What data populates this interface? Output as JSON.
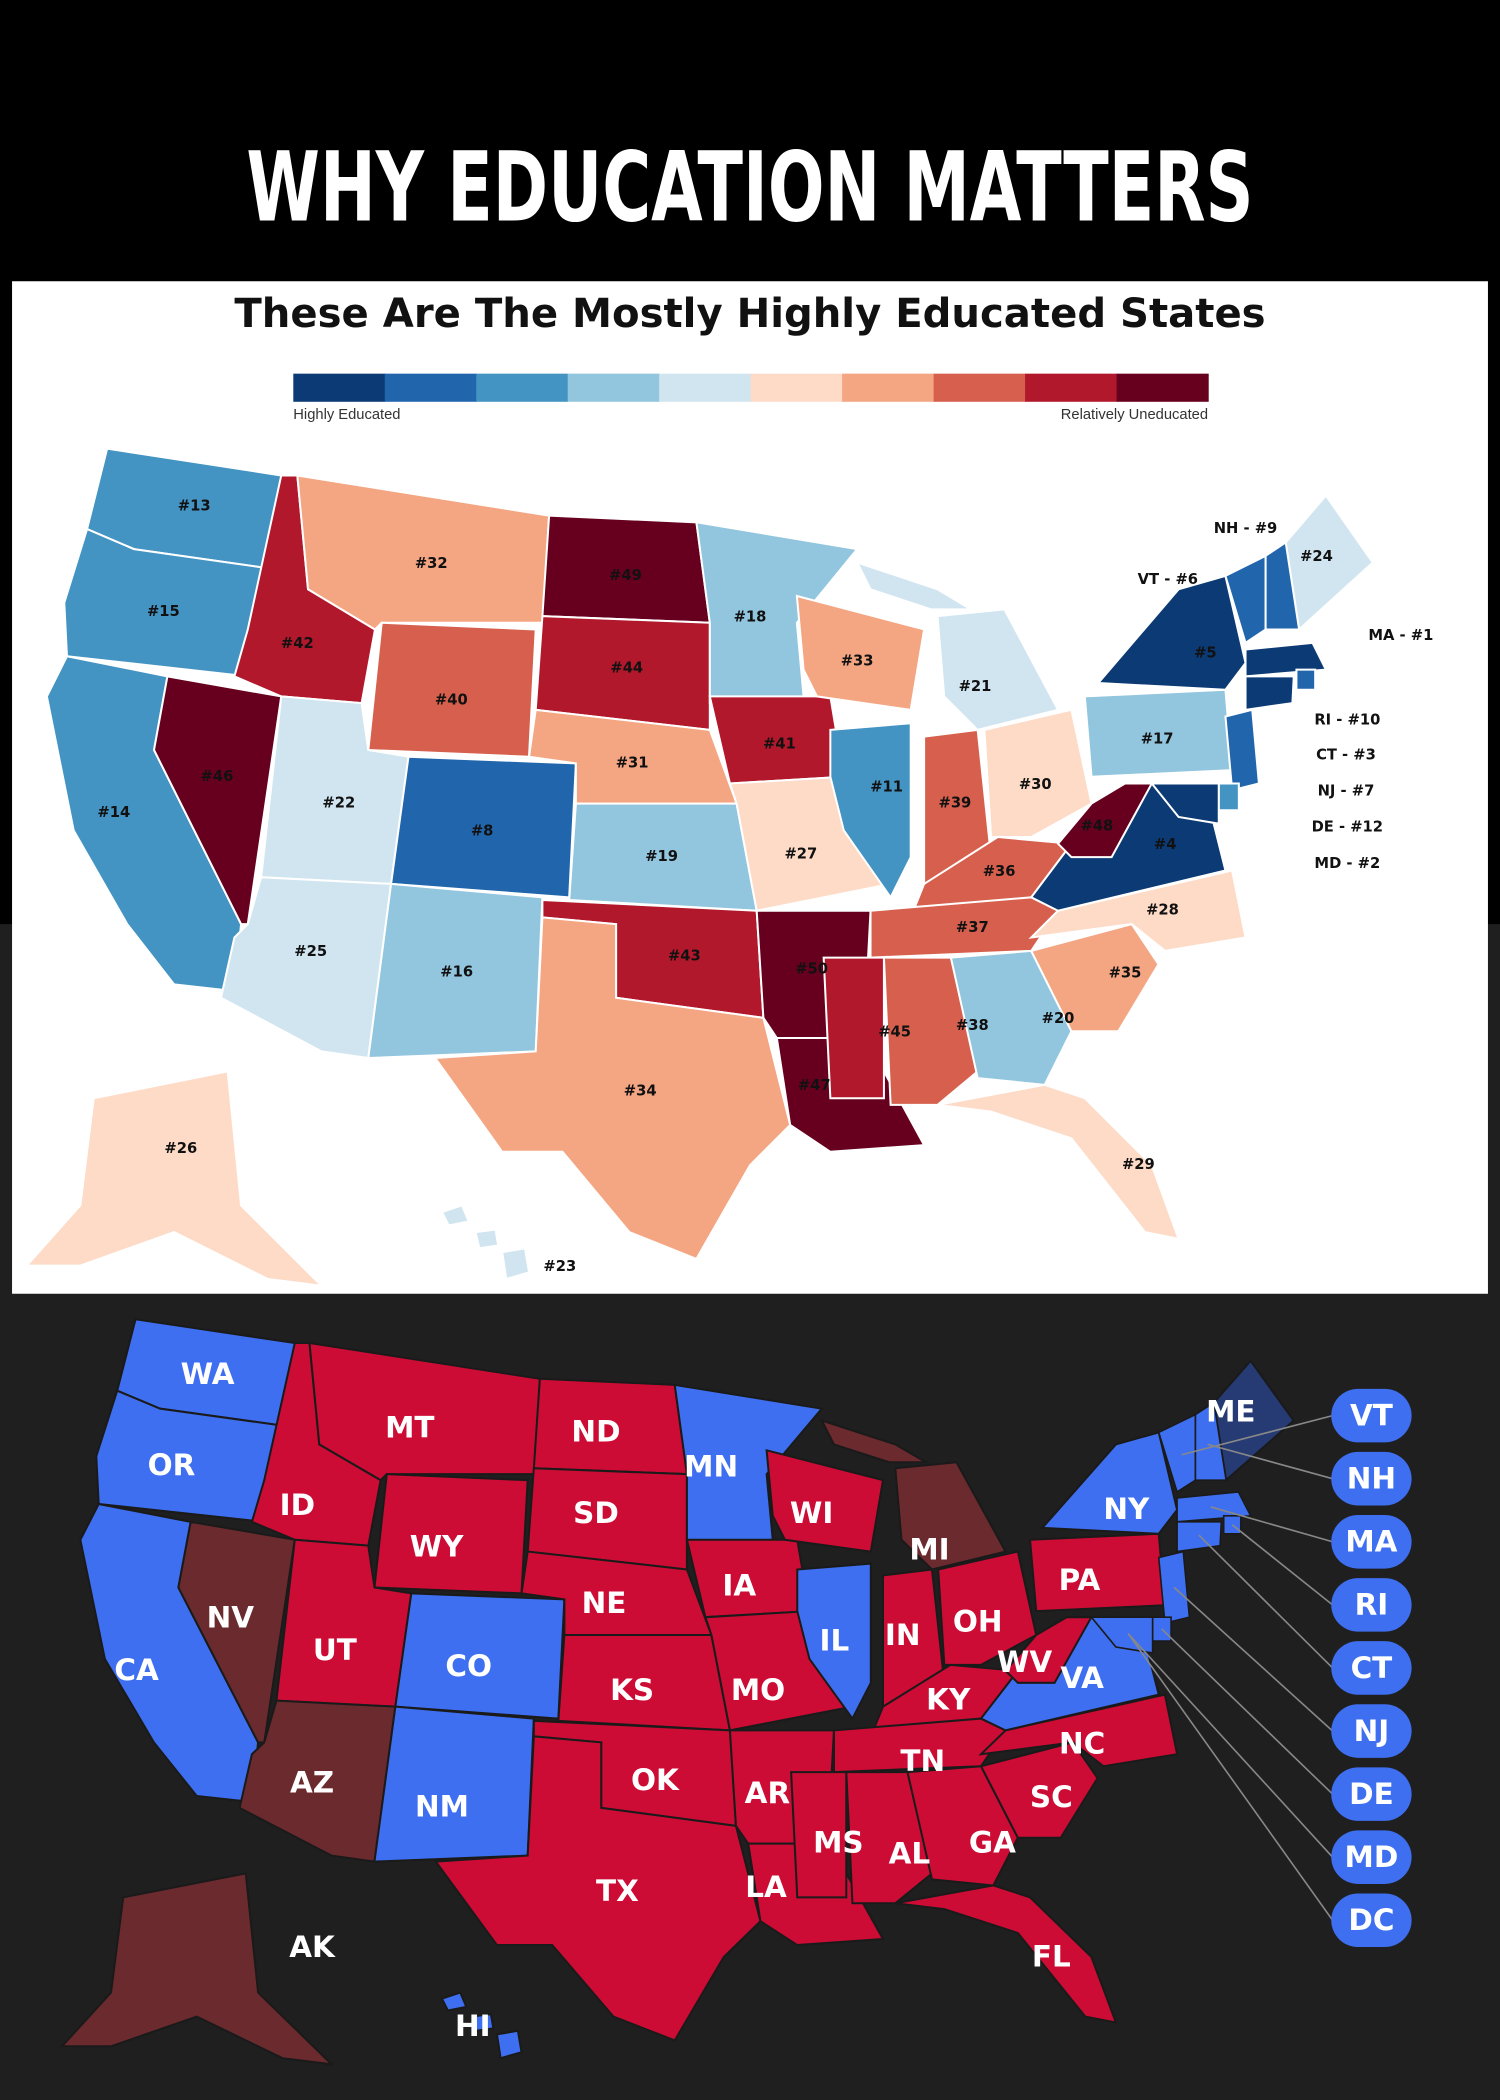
{
  "header": {
    "title": "WHY EDUCATION MATTERS"
  },
  "education_map": {
    "title": "These Are The Mostly Highly Educated States",
    "legend": {
      "colors": [
        "#0b3a75",
        "#2166ac",
        "#4393c3",
        "#92c5de",
        "#d1e5f0",
        "#fddbc7",
        "#f4a582",
        "#d6604d",
        "#b2182b",
        "#67001f"
      ],
      "low_label": "Highly Educated",
      "high_label": "Relatively Uneducated"
    },
    "states": [
      {
        "label": "#13",
        "color": "#4393c3"
      },
      {
        "label": "#15",
        "color": "#4393c3"
      },
      {
        "label": "#14",
        "color": "#4393c3"
      },
      {
        "label": "#46",
        "color": "#67001f"
      },
      {
        "label": "#42",
        "color": "#b2182b"
      },
      {
        "label": "#32",
        "color": "#f4a582"
      },
      {
        "label": "#40",
        "color": "#d6604d"
      },
      {
        "label": "#22",
        "color": "#d1e5f0"
      },
      {
        "label": "#8",
        "color": "#2166ac"
      },
      {
        "label": "#25",
        "color": "#d1e5f0"
      },
      {
        "label": "#16",
        "color": "#92c5de"
      },
      {
        "label": "#49",
        "color": "#67001f"
      },
      {
        "label": "#44",
        "color": "#b2182b"
      },
      {
        "label": "#31",
        "color": "#f4a582"
      },
      {
        "label": "#19",
        "color": "#92c5de"
      },
      {
        "label": "#43",
        "color": "#b2182b"
      },
      {
        "label": "#34",
        "color": "#f4a582"
      },
      {
        "label": "#18",
        "color": "#92c5de"
      },
      {
        "label": "#41",
        "color": "#b2182b"
      },
      {
        "label": "#27",
        "color": "#fddbc7"
      },
      {
        "label": "#50",
        "color": "#67001f"
      },
      {
        "label": "#47",
        "color": "#67001f"
      },
      {
        "label": "#33",
        "color": "#f4a582"
      },
      {
        "label": "#11",
        "color": "#4393c3"
      },
      {
        "label": "#21",
        "color": "#d1e5f0"
      },
      {
        "label": "#39",
        "color": "#d6604d"
      },
      {
        "label": "#30",
        "color": "#fddbc7"
      },
      {
        "label": "#36",
        "color": "#d6604d"
      },
      {
        "label": "#37",
        "color": "#d6604d"
      },
      {
        "label": "#45",
        "color": "#b2182b"
      },
      {
        "label": "#38",
        "color": "#d6604d"
      },
      {
        "label": "#20",
        "color": "#92c5de"
      },
      {
        "label": "#29",
        "color": "#fddbc7"
      },
      {
        "label": "#35",
        "color": "#f4a582"
      },
      {
        "label": "#28",
        "color": "#fddbc7"
      },
      {
        "label": "#4",
        "color": "#0b3a75"
      },
      {
        "label": "#48",
        "color": "#67001f"
      },
      {
        "label": "#17",
        "color": "#92c5de"
      },
      {
        "label": "#5",
        "color": "#0b3a75"
      },
      {
        "label": "#24",
        "color": "#d1e5f0"
      },
      {
        "label": "#26",
        "color": "#fddbc7"
      },
      {
        "label": "#23",
        "color": "#d1e5f0"
      },
      {
        "label": "VT - #6",
        "color": "#2166ac"
      },
      {
        "label": "NH - #9",
        "color": "#2166ac"
      },
      {
        "label": "MA - #1",
        "color": "#0b3a75"
      },
      {
        "label": "RI - #10",
        "color": "#2166ac"
      },
      {
        "label": "CT - #3",
        "color": "#0b3a75"
      },
      {
        "label": "NJ - #7",
        "color": "#2166ac"
      },
      {
        "label": "DE - #12",
        "color": "#4393c3"
      },
      {
        "label": "MD - #2",
        "color": "#0b3a75"
      }
    ]
  },
  "party_map": {
    "states": [
      {
        "label": "WA",
        "color": "#3e6ff0"
      },
      {
        "label": "OR",
        "color": "#3e6ff0"
      },
      {
        "label": "CA",
        "color": "#3e6ff0"
      },
      {
        "label": "NV",
        "color": "#6b2a2e"
      },
      {
        "label": "ID",
        "color": "#cc0c35"
      },
      {
        "label": "MT",
        "color": "#cc0c35"
      },
      {
        "label": "WY",
        "color": "#cc0c35"
      },
      {
        "label": "UT",
        "color": "#cc0c35"
      },
      {
        "label": "CO",
        "color": "#3e6ff0"
      },
      {
        "label": "AZ",
        "color": "#6b2a2e"
      },
      {
        "label": "NM",
        "color": "#3e6ff0"
      },
      {
        "label": "ND",
        "color": "#cc0c35"
      },
      {
        "label": "SD",
        "color": "#cc0c35"
      },
      {
        "label": "NE",
        "color": "#cc0c35"
      },
      {
        "label": "KS",
        "color": "#cc0c35"
      },
      {
        "label": "OK",
        "color": "#cc0c35"
      },
      {
        "label": "TX",
        "color": "#cc0c35"
      },
      {
        "label": "MN",
        "color": "#3e6ff0"
      },
      {
        "label": "IA",
        "color": "#cc0c35"
      },
      {
        "label": "MO",
        "color": "#cc0c35"
      },
      {
        "label": "AR",
        "color": "#cc0c35"
      },
      {
        "label": "LA",
        "color": "#cc0c35"
      },
      {
        "label": "WI",
        "color": "#cc0c35"
      },
      {
        "label": "IL",
        "color": "#3e6ff0"
      },
      {
        "label": "MI",
        "color": "#6b2a2e"
      },
      {
        "label": "IN",
        "color": "#cc0c35"
      },
      {
        "label": "OH",
        "color": "#cc0c35"
      },
      {
        "label": "KY",
        "color": "#cc0c35"
      },
      {
        "label": "TN",
        "color": "#cc0c35"
      },
      {
        "label": "MS",
        "color": "#cc0c35"
      },
      {
        "label": "AL",
        "color": "#cc0c35"
      },
      {
        "label": "GA",
        "color": "#cc0c35"
      },
      {
        "label": "FL",
        "color": "#cc0c35"
      },
      {
        "label": "SC",
        "color": "#cc0c35"
      },
      {
        "label": "NC",
        "color": "#cc0c35"
      },
      {
        "label": "VA",
        "color": "#3e6ff0"
      },
      {
        "label": "WV",
        "color": "#cc0c35"
      },
      {
        "label": "PA",
        "color": "#cc0c35"
      },
      {
        "label": "NY",
        "color": "#3e6ff0"
      },
      {
        "label": "ME",
        "color": "#263b73"
      },
      {
        "label": "AK",
        "color": "#6b2a2e"
      },
      {
        "label": "HI",
        "color": "#3e6ff0"
      }
    ],
    "callouts": [
      {
        "label": "VT",
        "color": "#3e6ff0"
      },
      {
        "label": "NH",
        "color": "#3e6ff0"
      },
      {
        "label": "MA",
        "color": "#3e6ff0"
      },
      {
        "label": "RI",
        "color": "#3e6ff0"
      },
      {
        "label": "CT",
        "color": "#3e6ff0"
      },
      {
        "label": "NJ",
        "color": "#3e6ff0"
      },
      {
        "label": "DE",
        "color": "#3e6ff0"
      },
      {
        "label": "MD",
        "color": "#3e6ff0"
      },
      {
        "label": "DC",
        "color": "#3e6ff0"
      }
    ]
  }
}
